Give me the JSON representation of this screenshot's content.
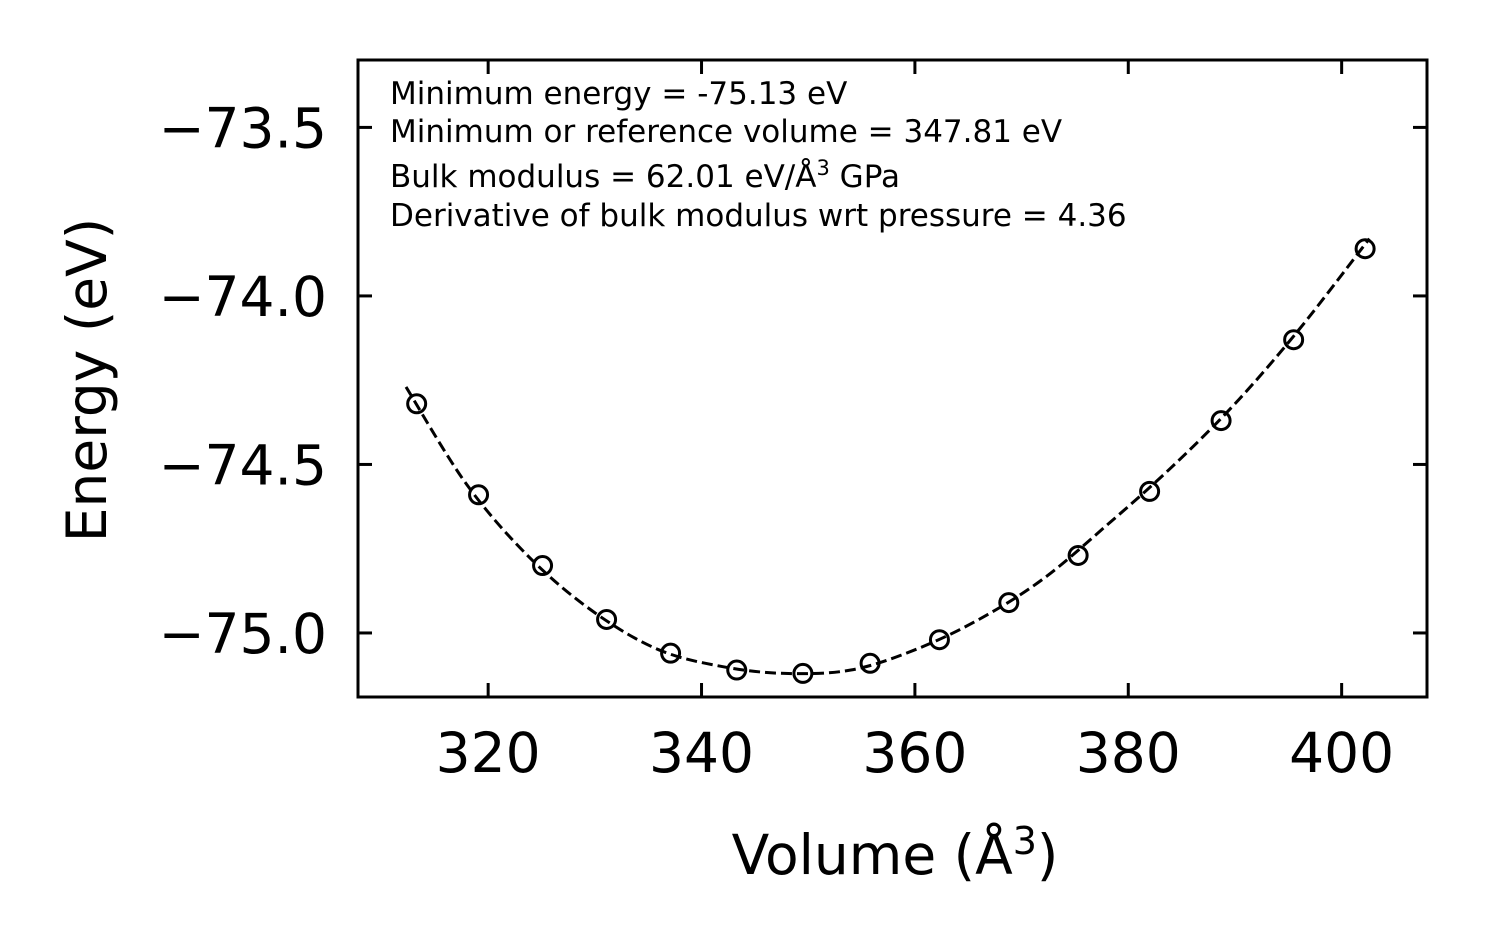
{
  "chart_data": {
    "type": "scatter",
    "xlabel": "Volume (Å",
    "xlabel_sup": "3",
    "xlabel_end": ")",
    "ylabel": "Energy (eV)",
    "xlim": [
      307.8,
      408.0
    ],
    "ylim": [
      -75.19,
      -73.3
    ],
    "xticks": [
      320,
      340,
      360,
      380,
      400
    ],
    "xtick_labels": [
      "320",
      "340",
      "360",
      "380",
      "400"
    ],
    "yticks": [
      -73.5,
      -74.0,
      -74.5,
      -75.0
    ],
    "ytick_labels": [
      "−73.5",
      "−74.0",
      "−74.5",
      "−75.0"
    ],
    "annotations": {
      "line1": "Minimum energy = -75.13 eV",
      "line2": "Minimum or reference volume = 347.81 eV",
      "line3_pre": "Bulk modulus = 62.01 eV/Å",
      "line3_sup": "3",
      "line3_post": " GPa",
      "line4": "Derivative of bulk modulus wrt pressure = 4.36"
    },
    "series": [
      {
        "name": "data",
        "marker": "open-circle",
        "x": [
          313.3,
          319.1,
          325.1,
          331.1,
          337.1,
          343.3,
          349.5,
          355.8,
          362.3,
          368.8,
          375.3,
          382.0,
          388.7,
          395.5,
          402.2
        ],
        "y": [
          -74.32,
          -74.59,
          -74.8,
          -74.96,
          -75.06,
          -75.11,
          -75.12,
          -75.09,
          -75.02,
          -74.91,
          -74.77,
          -74.58,
          -74.37,
          -74.13,
          -73.86
        ]
      }
    ],
    "fit": {
      "name": "fit",
      "style": "dashed",
      "x": [
        312.3,
        318.0,
        324.0,
        330.0,
        336.0,
        342.0,
        347.81,
        354.0,
        360.0,
        366.0,
        372.0,
        378.0,
        384.0,
        390.0,
        396.0,
        402.6
      ],
      "y": [
        -74.27,
        -74.56,
        -74.78,
        -74.94,
        -75.05,
        -75.1,
        -75.12,
        -75.11,
        -75.05,
        -74.96,
        -74.84,
        -74.68,
        -74.51,
        -74.32,
        -74.1,
        -73.83
      ]
    }
  }
}
